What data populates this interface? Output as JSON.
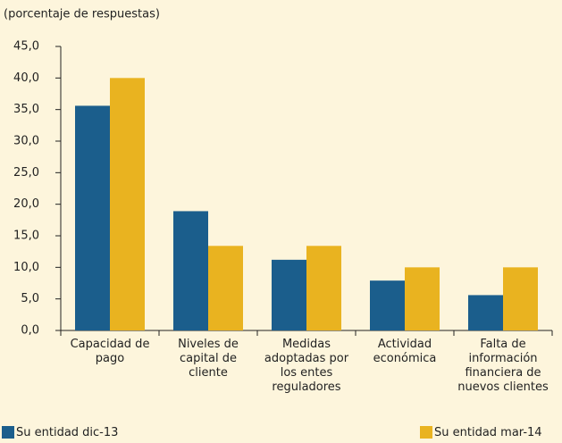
{
  "chart_data": {
    "type": "bar",
    "subtitle": "(porcentaje de respuestas)",
    "categories": [
      "Capacidad de pago",
      "Niveles de capital de cliente",
      "Medidas adoptadas por los entes reguladores",
      "Actividad económica",
      "Falta de información financiera de nuevos clientes"
    ],
    "series": [
      {
        "name": "Su entidad dic-13",
        "color": "#1b5e8c",
        "values": [
          35.6,
          18.9,
          11.2,
          7.9,
          5.6
        ]
      },
      {
        "name": "Su entidad mar-14",
        "color": "#e9b320",
        "values": [
          40.0,
          13.4,
          13.4,
          10.0,
          10.0
        ]
      }
    ],
    "ylim": [
      0,
      45
    ],
    "yticks": [
      {
        "value": 0,
        "label": "0,0"
      },
      {
        "value": 5,
        "label": "5,0"
      },
      {
        "value": 10,
        "label": "10,0"
      },
      {
        "value": 15,
        "label": "15,0"
      },
      {
        "value": 20,
        "label": "20,0"
      },
      {
        "value": 25,
        "label": "25,0"
      },
      {
        "value": 30,
        "label": "30,0"
      },
      {
        "value": 35,
        "label": "35,0"
      },
      {
        "value": 40,
        "label": "40,0"
      },
      {
        "value": 45,
        "label": "45,0"
      }
    ],
    "grid": false
  }
}
